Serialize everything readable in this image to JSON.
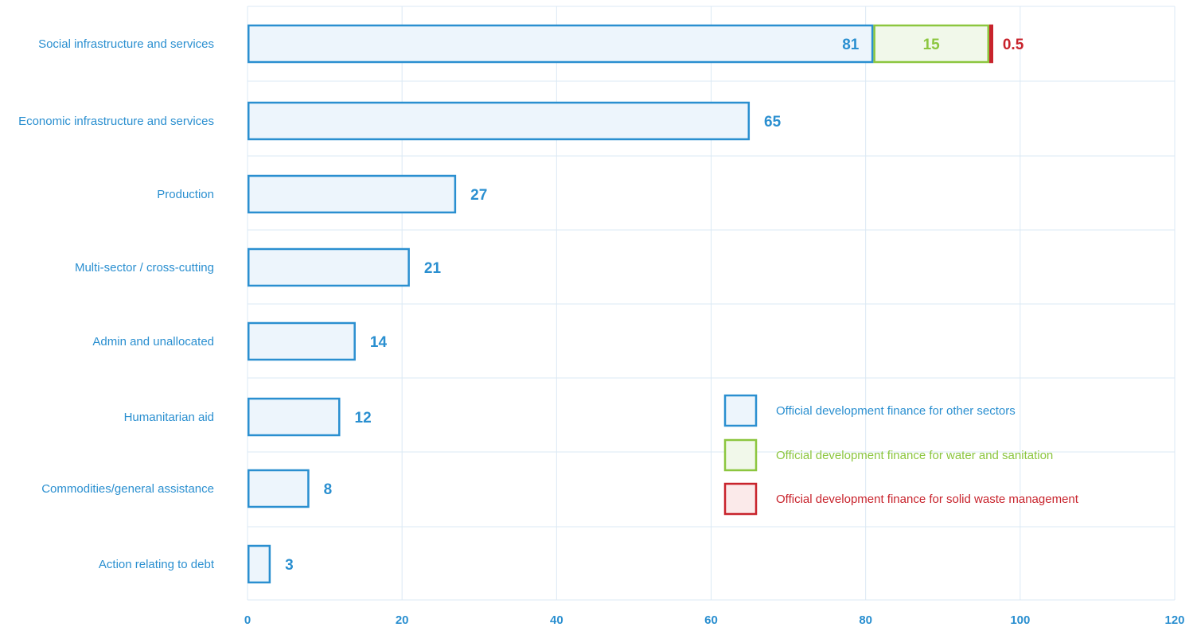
{
  "chart_data": {
    "type": "bar",
    "orientation": "horizontal",
    "stacked": true,
    "categories": [
      "Social infrastructure and services",
      "Economic infrastructure and services",
      "Production",
      "Multi-sector / cross-cutting",
      "Admin and unallocated",
      "Humanitarian aid",
      "Commodities/general assistance",
      "Action relating to debt"
    ],
    "series": [
      {
        "name": "Official development finance for other sectors",
        "values": [
          81,
          65,
          27,
          21,
          14,
          12,
          8,
          3
        ],
        "labels": [
          "81",
          "65",
          "27",
          "21",
          "14",
          "12",
          "8",
          "3"
        ],
        "color": "#2a8fd0",
        "fill": "#edf5fc"
      },
      {
        "name": "Official development finance for water and sanitation",
        "values": [
          15,
          null,
          null,
          null,
          null,
          null,
          null,
          null
        ],
        "labels": [
          "15",
          "",
          "",
          "",
          "",
          "",
          "",
          ""
        ],
        "color": "#8cc63f",
        "fill": "#f1f8ea"
      },
      {
        "name": "Official development finance for solid waste management",
        "values": [
          0.5,
          null,
          null,
          null,
          null,
          null,
          null,
          null
        ],
        "labels": [
          "0.5",
          "",
          "",
          "",
          "",
          "",
          "",
          ""
        ],
        "color": "#c8232c",
        "fill": "#fbeaea"
      }
    ],
    "xlim": [
      0,
      120
    ],
    "xticks": [
      0,
      20,
      40,
      60,
      80,
      100,
      120
    ],
    "grid": true,
    "legend_position": "lower-right inside plot",
    "title": "",
    "xlabel": "",
    "ylabel": ""
  }
}
